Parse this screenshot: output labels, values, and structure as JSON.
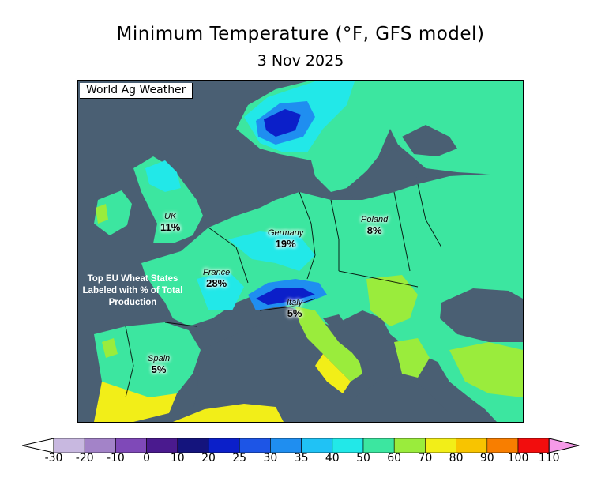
{
  "title": "Minimum Temperature (°F, GFS model)",
  "date": "3 Nov 2025",
  "watermark": "World Ag Weather",
  "note": "Top EU Wheat States Labeled with % of Total Production",
  "regions": [
    {
      "name": "UK",
      "pct": "11%"
    },
    {
      "name": "Germany",
      "pct": "19%"
    },
    {
      "name": "Poland",
      "pct": "8%"
    },
    {
      "name": "France",
      "pct": "28%"
    },
    {
      "name": "Italy",
      "pct": "5%"
    },
    {
      "name": "Spain",
      "pct": "5%"
    }
  ],
  "legend": {
    "ticks": [
      "-30",
      "-20",
      "-10",
      "0",
      "10",
      "20",
      "25",
      "30",
      "35",
      "40",
      "50",
      "60",
      "70",
      "80",
      "90",
      "100",
      "110"
    ],
    "colors": [
      "#c8b8e0",
      "#a383c8",
      "#7f49b8",
      "#4a1a8e",
      "#14147d",
      "#0b1fc9",
      "#1d55e6",
      "#1f8ef0",
      "#20c2f5",
      "#22e8e8",
      "#3ce6a0",
      "#9aec3c",
      "#f2ee18",
      "#f8c400",
      "#f87e00",
      "#f20d0d",
      "#f21ab4",
      "#f59ae8"
    ]
  }
}
